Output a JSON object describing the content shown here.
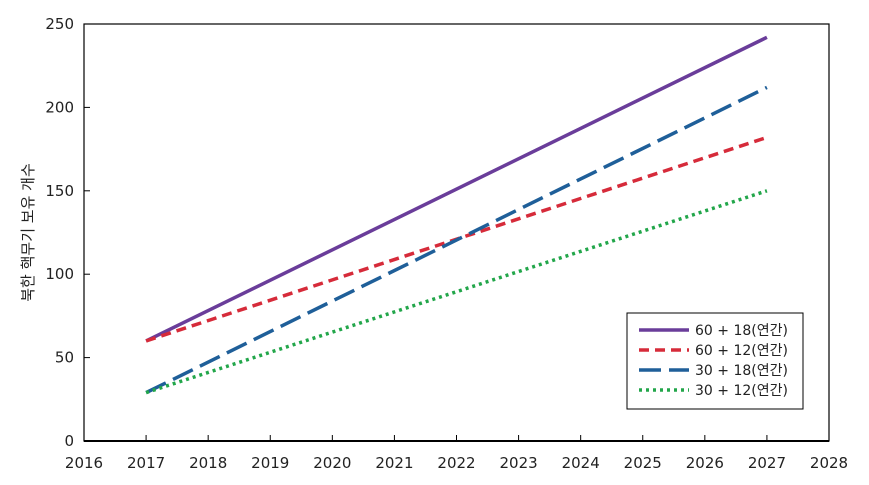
{
  "chart_data": {
    "type": "line",
    "title": "",
    "xlabel": "",
    "ylabel": "북한 핵무기 보유 개수",
    "xlim": [
      2016,
      2028
    ],
    "ylim": [
      0,
      250
    ],
    "x_ticks": [
      2016,
      2017,
      2018,
      2019,
      2020,
      2021,
      2022,
      2023,
      2024,
      2025,
      2026,
      2027,
      2028
    ],
    "y_ticks": [
      0,
      50,
      100,
      150,
      200,
      250
    ],
    "grid": false,
    "legend_position": "bottom-right",
    "series": [
      {
        "name": "60 + 18(연간)",
        "color": "#6a3d9a",
        "style": "solid",
        "x": [
          2017,
          2027
        ],
        "y": [
          60,
          242
        ]
      },
      {
        "name": "60 + 12(연간)",
        "color": "#d62b3a",
        "style": "dashed",
        "x": [
          2017,
          2027
        ],
        "y": [
          60,
          182
        ]
      },
      {
        "name": "30 + 18(연간)",
        "color": "#1f5f99",
        "style": "longdash",
        "x": [
          2017,
          2027
        ],
        "y": [
          29,
          212
        ]
      },
      {
        "name": "30 + 12(연간)",
        "color": "#22a64a",
        "style": "dotted",
        "x": [
          2017,
          2027
        ],
        "y": [
          29,
          150
        ]
      }
    ]
  }
}
